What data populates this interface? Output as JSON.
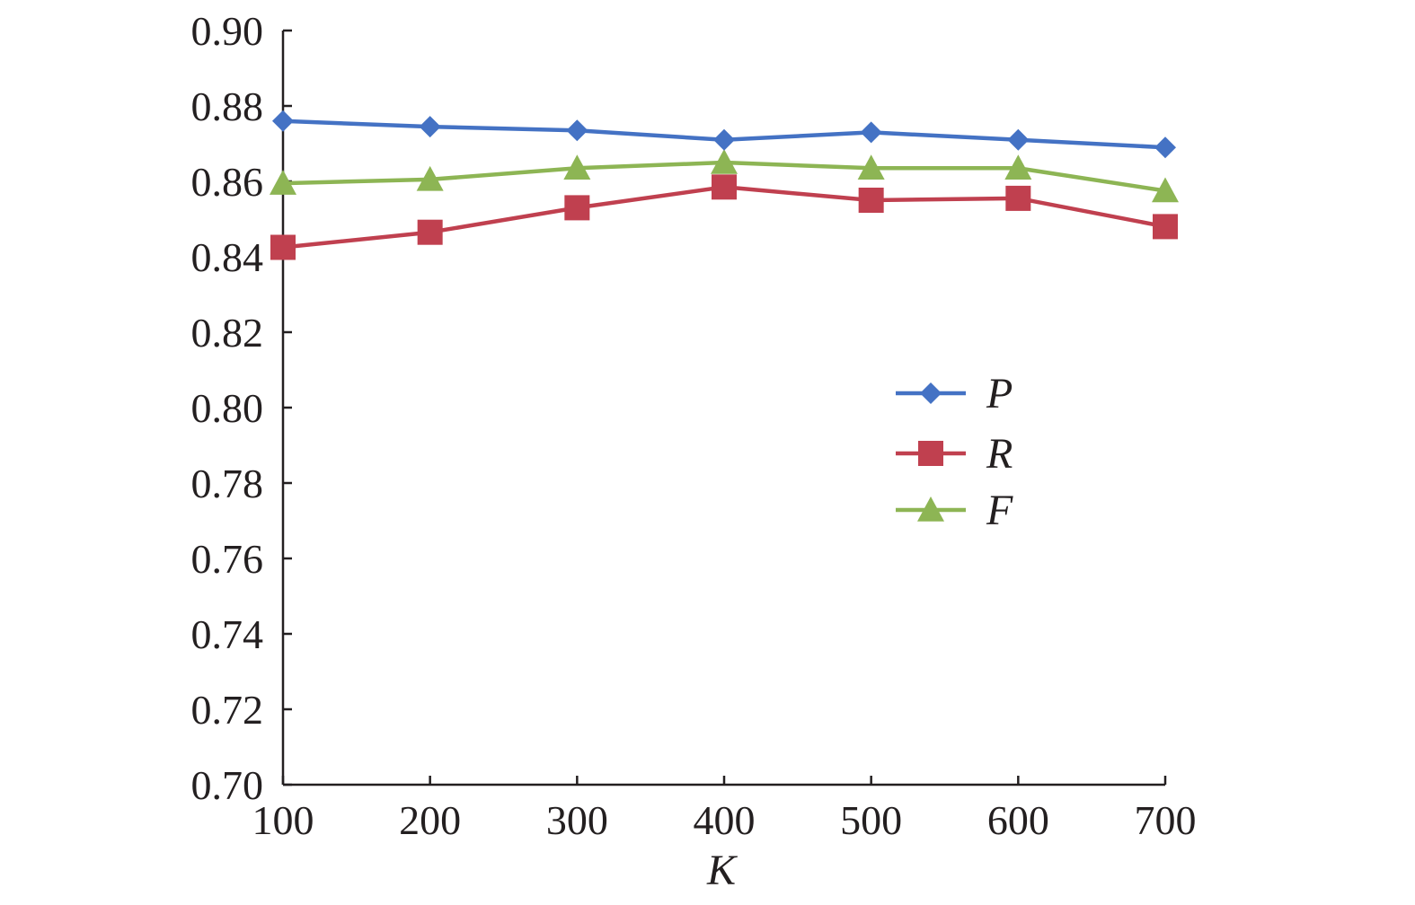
{
  "chart_data": {
    "type": "line",
    "title": "",
    "xlabel": "K",
    "ylabel": "",
    "x": [
      100,
      200,
      300,
      400,
      500,
      600,
      700
    ],
    "x_tick_labels": [
      "100",
      "200",
      "300",
      "400",
      "500",
      "600",
      "700"
    ],
    "y_tick_labels": [
      "0.70",
      "0.72",
      "0.74",
      "0.76",
      "0.78",
      "0.80",
      "0.82",
      "0.84",
      "0.86",
      "0.88",
      "0.90"
    ],
    "ylim": [
      0.7,
      0.9
    ],
    "grid": false,
    "legend_position": "center-right",
    "series": [
      {
        "name": "P",
        "color": "#4472c4",
        "marker": "diamond",
        "values": [
          0.876,
          0.8745,
          0.8735,
          0.871,
          0.873,
          0.871,
          0.869
        ]
      },
      {
        "name": "R",
        "color": "#c0404f",
        "marker": "square",
        "values": [
          0.8425,
          0.8465,
          0.853,
          0.8585,
          0.855,
          0.8555,
          0.848
        ]
      },
      {
        "name": "F",
        "color": "#8db554",
        "marker": "triangle",
        "values": [
          0.8595,
          0.8605,
          0.8635,
          0.865,
          0.8635,
          0.8635,
          0.8575
        ]
      }
    ]
  }
}
